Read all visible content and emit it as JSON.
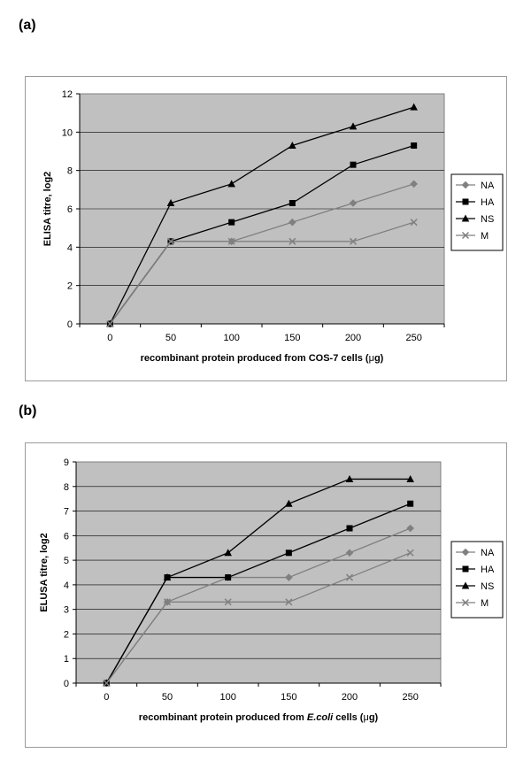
{
  "panels": [
    {
      "label": "(a)",
      "chart_data": {
        "type": "line",
        "x": [
          0,
          50,
          100,
          150,
          200,
          250
        ],
        "categories": [
          "0",
          "50",
          "100",
          "150",
          "200",
          "250"
        ],
        "ylabel": "ELISA titre, log2",
        "xlabel": [
          "recombinant protein produced from COS-7 cells (",
          "μ",
          "g)"
        ],
        "ylim": [
          0,
          12
        ],
        "yticks": [
          "0",
          "2",
          "4",
          "6",
          "8",
          "10",
          "12"
        ],
        "grid": true,
        "legend": "right",
        "series": [
          {
            "name": "NA",
            "values": [
              0,
              4.3,
              4.3,
              5.3,
              6.3,
              7.3
            ],
            "color": "#808080",
            "marker": "diamond"
          },
          {
            "name": "HA",
            "values": [
              0,
              4.3,
              5.3,
              6.3,
              8.3,
              9.3
            ],
            "color": "#000000",
            "marker": "square"
          },
          {
            "name": "NS",
            "values": [
              0,
              6.3,
              7.3,
              9.3,
              10.3,
              11.3
            ],
            "color": "#000000",
            "marker": "triangle"
          },
          {
            "name": "M",
            "values": [
              0,
              4.3,
              4.3,
              4.3,
              4.3,
              5.3
            ],
            "color": "#808080",
            "marker": "x"
          }
        ]
      }
    },
    {
      "label": "(b)",
      "chart_data": {
        "type": "line",
        "x": [
          0,
          50,
          100,
          150,
          200,
          250
        ],
        "categories": [
          "0",
          "50",
          "100",
          "150",
          "200",
          "250"
        ],
        "ylabel": "ELUSA titre, log2",
        "xlabel": [
          "recombinant protein produced from ",
          "E.coli",
          " cells (",
          "μ",
          "g)"
        ],
        "ylim": [
          0,
          9
        ],
        "yticks": [
          "0",
          "1",
          "2",
          "3",
          "4",
          "5",
          "6",
          "7",
          "8",
          "9"
        ],
        "grid": true,
        "legend": "right",
        "series": [
          {
            "name": "NA",
            "values": [
              0,
              3.3,
              4.3,
              4.3,
              5.3,
              6.3
            ],
            "color": "#808080",
            "marker": "diamond"
          },
          {
            "name": "HA",
            "values": [
              0,
              4.3,
              4.3,
              5.3,
              6.3,
              7.3
            ],
            "color": "#000000",
            "marker": "square"
          },
          {
            "name": "NS",
            "values": [
              0,
              4.3,
              5.3,
              7.3,
              8.3,
              8.3
            ],
            "color": "#000000",
            "marker": "triangle"
          },
          {
            "name": "M",
            "values": [
              0,
              3.3,
              3.3,
              3.3,
              4.3,
              5.3
            ],
            "color": "#808080",
            "marker": "x"
          }
        ]
      }
    }
  ]
}
